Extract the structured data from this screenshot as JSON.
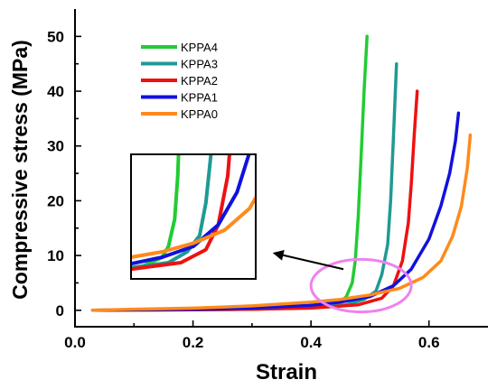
{
  "chart_data": {
    "type": "line",
    "title": "",
    "xlabel": "Strain",
    "ylabel": "Compressive stress (MPa)",
    "xlim": [
      0.0,
      0.7
    ],
    "ylim": [
      -3,
      55
    ],
    "xticks": [
      0.0,
      0.2,
      0.4,
      0.6
    ],
    "xtick_labels": [
      "0.0",
      "0.2",
      "0.4",
      "0.6"
    ],
    "yticks": [
      0,
      10,
      20,
      30,
      40,
      50
    ],
    "ytick_labels": [
      "0",
      "10",
      "20",
      "30",
      "40",
      "50"
    ],
    "grid": false,
    "legend_position": "top-left",
    "series": [
      {
        "name": "KPPA4",
        "color": "#22cc33",
        "x": [
          0.03,
          0.1,
          0.2,
          0.3,
          0.38,
          0.42,
          0.45,
          0.46,
          0.47,
          0.475,
          0.48,
          0.485,
          0.49,
          0.495
        ],
        "y": [
          0,
          0.05,
          0.1,
          0.2,
          0.4,
          0.7,
          1.5,
          2.5,
          5,
          9,
          17,
          28,
          40,
          50
        ]
      },
      {
        "name": "KPPA3",
        "color": "#1f9a94",
        "x": [
          0.03,
          0.1,
          0.2,
          0.3,
          0.4,
          0.46,
          0.49,
          0.51,
          0.52,
          0.53,
          0.535,
          0.54,
          0.545
        ],
        "y": [
          0,
          0.05,
          0.1,
          0.2,
          0.5,
          1.0,
          2.0,
          3.5,
          6.5,
          12,
          20,
          32,
          45
        ]
      },
      {
        "name": "KPPA2",
        "color": "#ee1111",
        "x": [
          0.03,
          0.1,
          0.2,
          0.3,
          0.4,
          0.48,
          0.52,
          0.54,
          0.555,
          0.565,
          0.57,
          0.575,
          0.58
        ],
        "y": [
          0,
          0.05,
          0.1,
          0.2,
          0.4,
          1.0,
          2.2,
          4.5,
          9,
          16,
          23,
          32,
          40
        ]
      },
      {
        "name": "KPPA1",
        "color": "#1111dd",
        "x": [
          0.03,
          0.1,
          0.2,
          0.3,
          0.4,
          0.45,
          0.5,
          0.54,
          0.57,
          0.6,
          0.62,
          0.635,
          0.645,
          0.65
        ],
        "y": [
          0,
          0.1,
          0.2,
          0.4,
          0.9,
          1.5,
          2.5,
          4.5,
          7.5,
          13,
          19,
          25,
          31,
          36
        ]
      },
      {
        "name": "KPPA0",
        "color": "#ff8a1c",
        "x": [
          0.03,
          0.1,
          0.2,
          0.3,
          0.4,
          0.45,
          0.5,
          0.55,
          0.59,
          0.62,
          0.64,
          0.655,
          0.665,
          0.67
        ],
        "y": [
          0,
          0.2,
          0.4,
          0.8,
          1.5,
          2.0,
          2.8,
          4.0,
          6.0,
          9.0,
          13.5,
          19,
          26,
          32
        ]
      }
    ],
    "annotations": {
      "ellipse_center": [
        0.485,
        4.5
      ],
      "ellipse_radii": [
        0.085,
        4.8
      ],
      "ellipse_color": "#ee82ee",
      "arrow_from": [
        0.455,
        7.5
      ],
      "arrow_to": [
        0.335,
        10.5
      ],
      "inset_curve_colors": [
        "#22cc33",
        "#1f9a94",
        "#ee1111",
        "#1111dd",
        "#ff8a1c"
      ]
    }
  }
}
